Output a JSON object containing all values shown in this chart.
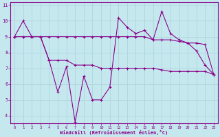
{
  "xlabel": "Windchill (Refroidissement éolien,°C)",
  "background_color": "#c5e8ef",
  "grid_color": "#afd4dc",
  "line_color": "#880088",
  "x": [
    0,
    1,
    2,
    3,
    4,
    5,
    6,
    7,
    8,
    9,
    10,
    11,
    12,
    13,
    14,
    15,
    16,
    17,
    18,
    19,
    20,
    21,
    22,
    23
  ],
  "line1": [
    9.0,
    10.0,
    9.0,
    9.0,
    7.5,
    5.5,
    7.1,
    3.6,
    6.5,
    5.0,
    5.0,
    5.8,
    10.2,
    9.6,
    9.2,
    9.4,
    8.8,
    10.6,
    9.2,
    8.8,
    8.6,
    8.1,
    7.2,
    6.6
  ],
  "line2": [
    9.0,
    9.0,
    9.0,
    9.0,
    9.0,
    9.0,
    9.0,
    9.0,
    9.0,
    9.0,
    9.0,
    9.0,
    9.0,
    9.0,
    9.0,
    9.0,
    8.8,
    8.8,
    8.8,
    8.7,
    8.6,
    8.6,
    8.5,
    6.6
  ],
  "line3": [
    9.0,
    9.0,
    9.0,
    9.0,
    7.5,
    7.5,
    7.5,
    7.2,
    7.2,
    7.2,
    7.0,
    7.0,
    7.0,
    7.0,
    7.0,
    7.0,
    7.0,
    6.9,
    6.8,
    6.8,
    6.8,
    6.8,
    6.8,
    6.6
  ],
  "ylim_min": 3.5,
  "ylim_max": 11.2,
  "xlim_min": -0.5,
  "xlim_max": 23.5,
  "yticks": [
    4,
    5,
    6,
    7,
    8,
    9,
    10,
    11
  ],
  "xticks": [
    0,
    1,
    2,
    3,
    4,
    5,
    6,
    7,
    8,
    9,
    10,
    11,
    12,
    13,
    14,
    15,
    16,
    17,
    18,
    19,
    20,
    21,
    22,
    23
  ]
}
